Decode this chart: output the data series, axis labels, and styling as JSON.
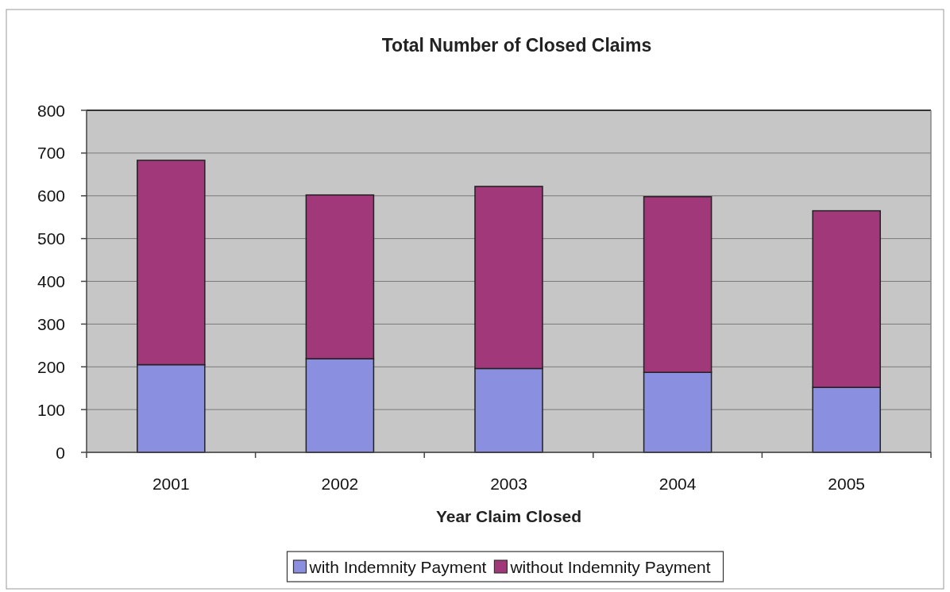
{
  "chart_data": {
    "type": "bar",
    "title": "Total Number of Closed Claims",
    "xlabel": "Year Claim Closed",
    "categories": [
      "2001",
      "2002",
      "2003",
      "2004",
      "2005"
    ],
    "series": [
      {
        "name": "with Indemnity Payment",
        "color": "#8a8fe0",
        "values": [
          205,
          219,
          196,
          187,
          152
        ]
      },
      {
        "name": "without Indemnity Payment",
        "color": "#a0387a",
        "values": [
          478,
          383,
          426,
          411,
          413
        ]
      }
    ],
    "stacked": true,
    "ylim": [
      0,
      800
    ],
    "yticks": [
      0,
      100,
      200,
      300,
      400,
      500,
      600,
      700,
      800
    ],
    "grid": "y",
    "legend": "bottom"
  }
}
